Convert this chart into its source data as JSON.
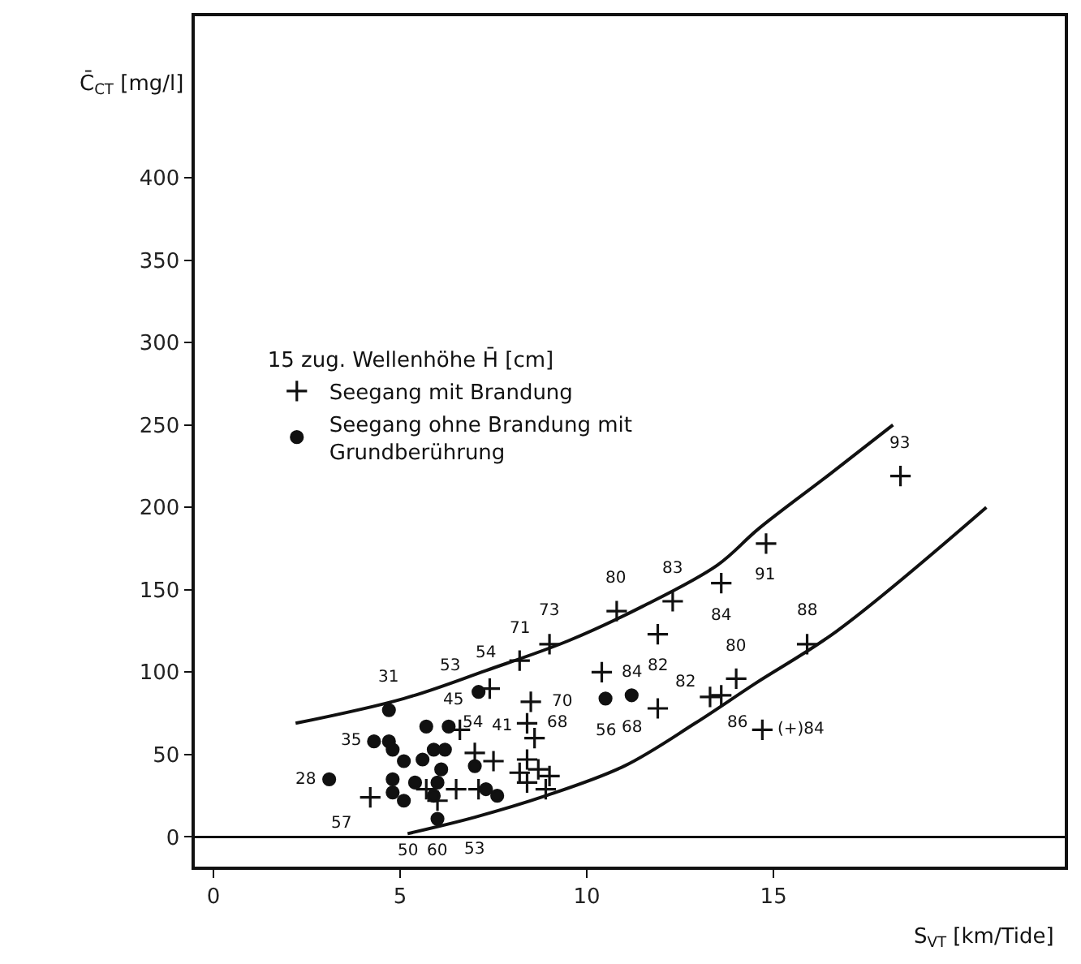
{
  "chart_data": {
    "type": "scatter",
    "xlabel": "S$_{VT}$ [km/Tide]",
    "ylabel": "C̄$_{CT}$ [mg/l]",
    "legend_title": "15 zug. Wellenhöhe H̄ [cm]",
    "xlim": [
      -0.5,
      22.8
    ],
    "ylim": [
      -18,
      498
    ],
    "xticks": [
      0,
      5,
      10,
      15
    ],
    "yticks": [
      0,
      50,
      100,
      150,
      200,
      250,
      300,
      350,
      400
    ],
    "grid": false,
    "legend": "left",
    "ref_lines": [
      {
        "axis": "y",
        "value": 0,
        "color": "#111111"
      }
    ],
    "series": [
      {
        "name": "Seegang mit Brandung",
        "marker": "cross",
        "color": "#111111",
        "x": [
          4.2,
          6.6,
          6.5,
          5.7,
          6.0,
          7.0,
          7.5,
          7.1,
          8.4,
          8.2,
          8.7,
          9.0,
          8.4,
          8.9,
          8.6,
          8.4,
          8.5,
          7.4,
          8.2,
          9.0,
          10.8,
          11.9,
          12.3,
          13.6,
          14.8,
          18.4,
          10.4,
          11.9,
          13.3,
          13.6,
          14.0,
          15.9,
          14.7
        ],
        "values": [
          24,
          65,
          29,
          29,
          22,
          51,
          46,
          29,
          47,
          39,
          41,
          37,
          33,
          29,
          60,
          69,
          82,
          90,
          107,
          117,
          137,
          123,
          143,
          154,
          178,
          219,
          100,
          78,
          85,
          86,
          96,
          117,
          65
        ]
      },
      {
        "name": "Seegang ohne Brandung mit Grundberührung",
        "marker": "circle",
        "color": "#111111",
        "x": [
          3.1,
          4.7,
          5.7,
          4.3,
          4.7,
          4.8,
          5.1,
          4.8,
          4.8,
          5.1,
          5.4,
          5.6,
          5.9,
          6.0,
          6.0,
          6.1,
          5.9,
          6.2,
          6.3,
          7.0,
          7.6,
          7.3,
          7.1,
          10.5,
          11.2
        ],
        "values": [
          35,
          77,
          67,
          58,
          58,
          53,
          46,
          35,
          27,
          22,
          33,
          47,
          53,
          33,
          11,
          41,
          25,
          53,
          67,
          43,
          25,
          29,
          88,
          84,
          86
        ]
      },
      {
        "type": "line",
        "marker": "none",
        "line_style": "solid",
        "color": "#111111",
        "x": [
          2.2,
          5.1,
          7.3,
          9.5,
          11.5,
          13.5,
          14.6,
          16.5,
          18.2
        ],
        "values": [
          69,
          84,
          101,
          119,
          140,
          165,
          187,
          220,
          250
        ]
      },
      {
        "type": "line",
        "marker": "none",
        "line_style": "solid",
        "color": "#111111",
        "x": [
          5.2,
          7.0,
          8.9,
          11.0,
          12.9,
          14.5,
          16.7,
          20.7
        ],
        "values": [
          2,
          12,
          25,
          43,
          69,
          93,
          125,
          200
        ]
      }
    ],
    "annotations": [
      {
        "text": "57",
        "x": 4.2,
        "y": 24
      },
      {
        "text": "41",
        "x": 7.0,
        "y": 51
      },
      {
        "text": "68",
        "x": 8.4,
        "y": 69
      },
      {
        "text": "70",
        "x": 8.5,
        "y": 82
      },
      {
        "text": "71",
        "x": 8.2,
        "y": 107
      },
      {
        "text": "73",
        "x": 9.0,
        "y": 117
      },
      {
        "text": "80",
        "x": 10.8,
        "y": 137
      },
      {
        "text": "82",
        "x": 11.9,
        "y": 123
      },
      {
        "text": "83",
        "x": 12.3,
        "y": 143
      },
      {
        "text": "84",
        "x": 13.6,
        "y": 154
      },
      {
        "text": "91",
        "x": 14.8,
        "y": 178
      },
      {
        "text": "93",
        "x": 18.4,
        "y": 219
      },
      {
        "text": "84",
        "x": 10.4,
        "y": 100
      },
      {
        "text": "82",
        "x": 11.9,
        "y": 78
      },
      {
        "text": "86",
        "x": 13.3,
        "y": 85
      },
      {
        "text": "80",
        "x": 14.0,
        "y": 96
      },
      {
        "text": "88",
        "x": 15.9,
        "y": 117
      },
      {
        "text": "(+)84",
        "x": 14.7,
        "y": 65
      },
      {
        "text": "28",
        "x": 3.1,
        "y": 35
      },
      {
        "text": "31",
        "x": 4.7,
        "y": 77
      },
      {
        "text": "45",
        "x": 5.7,
        "y": 67
      },
      {
        "text": "35",
        "x": 4.3,
        "y": 58
      },
      {
        "text": "60",
        "x": 6.0,
        "y": 11
      },
      {
        "text": "54",
        "x": 6.2,
        "y": 53
      },
      {
        "text": "53",
        "x": 7.1,
        "y": 88
      },
      {
        "text": "56",
        "x": 10.5,
        "y": 84
      },
      {
        "text": "68",
        "x": 11.2,
        "y": 86
      },
      {
        "text": "54",
        "x": 7.3,
        "y": 101
      },
      {
        "text": "50",
        "x": 5.2,
        "y": 2
      },
      {
        "text": "53",
        "x": 7.0,
        "y": 12
      }
    ]
  }
}
